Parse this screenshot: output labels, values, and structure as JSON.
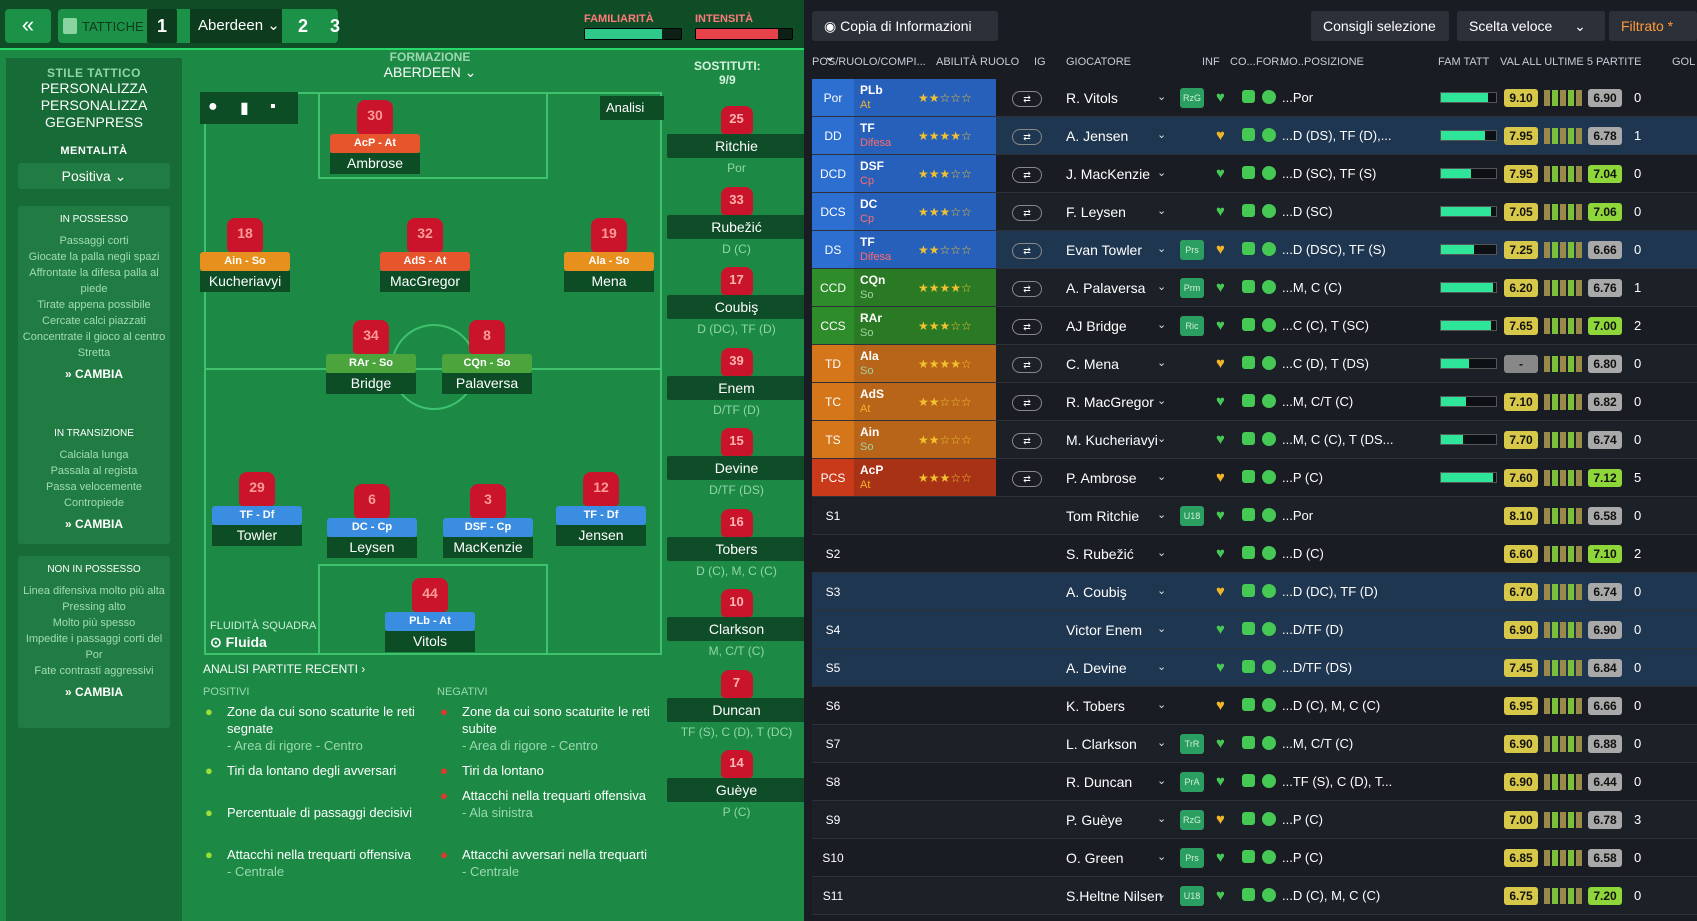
{
  "topbar": {
    "tactics": "TATTICHE",
    "tab1": "1",
    "team": "Aberdeen",
    "tab2": "2",
    "tab3": "3",
    "familiarity": "FAMILIARITÀ",
    "intensity": "INTENSITÀ"
  },
  "sidebar": {
    "style_label": "STILE TATTICO",
    "style_lines": [
      "PERSONALIZZA",
      "PERSONALIZZA",
      "GEGENPRESS"
    ],
    "mentality_label": "MENTALITÀ",
    "mentality": "Positiva",
    "possession": {
      "title": "IN POSSESSO",
      "items": [
        "Passaggi corti",
        "Giocate la palla negli spazi",
        "Affrontate la difesa palla al piede",
        "Tirate appena possibile",
        "Cercate calci piazzati",
        "Concentrate il gioco al centro",
        "Stretta"
      ],
      "cta": "CAMBIA"
    },
    "transition": {
      "title": "IN TRANSIZIONE",
      "items": [
        "Calciala lunga",
        "Passala al regista",
        "Passa velocemente",
        "Contropiede"
      ],
      "cta": "CAMBIA"
    },
    "defence": {
      "title": "NON IN POSSESSO",
      "items": [
        "Linea difensiva molto più alta",
        "Pressing alto",
        "Molto più spesso",
        "Impedite i passaggi corti del Por",
        "Fate contrasti aggressivi"
      ],
      "cta": "CAMBIA"
    }
  },
  "formation": {
    "label": "FORMAZIONE",
    "team": "ABERDEEN",
    "analysis": "Analisi",
    "fluidity_label": "FLUIDITÀ SQUADRA",
    "fluidity": "Fluida"
  },
  "pitch": [
    {
      "num": "30",
      "role": "AcP - At",
      "name": "Ambrose"
    },
    {
      "num": "18",
      "role": "Ain - So",
      "name": "Kucheriavyi"
    },
    {
      "num": "32",
      "role": "AdS - At",
      "name": "MacGregor"
    },
    {
      "num": "19",
      "role": "Ala - So",
      "name": "Mena"
    },
    {
      "num": "34",
      "role": "RAr - So",
      "name": "Bridge"
    },
    {
      "num": "8",
      "role": "CQn - So",
      "name": "Palaversa"
    },
    {
      "num": "29",
      "role": "TF - Df",
      "name": "Towler"
    },
    {
      "num": "6",
      "role": "DC - Cp",
      "name": "Leysen"
    },
    {
      "num": "3",
      "role": "DSF - Cp",
      "name": "MacKenzie"
    },
    {
      "num": "12",
      "role": "TF - Df",
      "name": "Jensen"
    },
    {
      "num": "44",
      "role": "PLb - At",
      "name": "Vitols"
    }
  ],
  "subs": {
    "label": "SOSTITUTI:",
    "count": "9/9",
    "list": [
      {
        "num": "25",
        "name": "Ritchie",
        "pos": "Por"
      },
      {
        "num": "33",
        "name": "Rubežić",
        "pos": "D (C)"
      },
      {
        "num": "17",
        "name": "Coubiş",
        "pos": "D (DC), TF (D)"
      },
      {
        "num": "39",
        "name": "Enem",
        "pos": "D/TF (D)"
      },
      {
        "num": "15",
        "name": "Devine",
        "pos": "D/TF (DS)"
      },
      {
        "num": "16",
        "name": "Tobers",
        "pos": "D (C), M, C (C)"
      },
      {
        "num": "10",
        "name": "Clarkson",
        "pos": "M, C/T (C)"
      },
      {
        "num": "7",
        "name": "Duncan",
        "pos": "TF (S), C (D), T (DC)"
      },
      {
        "num": "14",
        "name": "Guèye",
        "pos": "P (C)"
      }
    ]
  },
  "analysis": {
    "title": "ANALISI PARTITE RECENTI",
    "pos_label": "POSITIVI",
    "neg_label": "NEGATIVI",
    "positives": [
      {
        "t": "Zone da cui sono scaturite le reti segnate",
        "s": "- Area di rigore - Centro"
      },
      {
        "t": "Tiri da lontano degli avversari",
        "s": ""
      },
      {
        "t": "Percentuale di passaggi decisivi",
        "s": ""
      },
      {
        "t": "Attacchi nella trequarti offensiva",
        "s": "- Centrale"
      }
    ],
    "negatives": [
      {
        "t": "Zone da cui sono scaturite le reti subite",
        "s": "- Area di rigore - Centro"
      },
      {
        "t": "Tiri da lontano",
        "s": ""
      },
      {
        "t": "Attacchi nella trequarti offensiva",
        "s": "- Ala sinistra"
      },
      {
        "t": "Attacchi avversari nella trequarti",
        "s": "- Centrale"
      }
    ]
  },
  "right": {
    "copy": "Copia di Informazioni",
    "advice": "Consigli selezione",
    "quick": "Scelta veloce",
    "filter": "Filtrato *",
    "headers": [
      "POS/RUOLO/COMPI...",
      "ABILITÀ RUOLO",
      "IG",
      "GIOCATORE",
      "INF",
      "CO...",
      "FOR...",
      "MO...",
      "POSIZIONE",
      "FAM TATT",
      "VAL ALL ULTIME 5 PARTITE",
      "GOL"
    ]
  },
  "rows": [
    {
      "pos": "Por",
      "role": "PLb",
      "duty": "At",
      "stars": "★★☆☆☆",
      "name": "R. Vitols",
      "inf": "RzG",
      "posi": "...Por",
      "fam": 0.85,
      "val": "9.10",
      "avg": "6.90",
      "gol": "0"
    },
    {
      "pos": "DD",
      "role": "TF",
      "duty": "Difesa",
      "stars": "★★★★☆",
      "name": "A. Jensen",
      "inf": "",
      "posi": "...D (DS), TF (D),...",
      "fam": 0.8,
      "val": "7.95",
      "avg": "6.78",
      "gol": "1"
    },
    {
      "pos": "DCD",
      "role": "DSF",
      "duty": "Cp",
      "stars": "★★★☆☆",
      "name": "J. MacKenzie",
      "inf": "",
      "posi": "...D (SC), TF (S)",
      "fam": 0.55,
      "val": "7.95",
      "avg": "7.04",
      "gol": "0"
    },
    {
      "pos": "DCS",
      "role": "DC",
      "duty": "Cp",
      "stars": "★★★☆☆",
      "name": "F. Leysen",
      "inf": "",
      "posi": "...D (SC)",
      "fam": 0.9,
      "val": "7.05",
      "avg": "7.06",
      "gol": "0"
    },
    {
      "pos": "DS",
      "role": "TF",
      "duty": "Difesa",
      "stars": "★★☆☆☆",
      "name": "Evan Towler",
      "inf": "Prs",
      "posi": "...D (DSC), TF (S)",
      "fam": 0.6,
      "val": "7.25",
      "avg": "6.66",
      "gol": "0"
    },
    {
      "pos": "CCD",
      "role": "CQn",
      "duty": "So",
      "stars": "★★★★☆",
      "name": "A. Palaversa",
      "inf": "Prm",
      "posi": "...M, C (C)",
      "fam": 0.95,
      "val": "6.20",
      "avg": "6.76",
      "gol": "1"
    },
    {
      "pos": "CCS",
      "role": "RAr",
      "duty": "So",
      "stars": "★★★☆☆",
      "name": "AJ Bridge",
      "inf": "Ric",
      "posi": "...C (C), T (SC)",
      "fam": 0.9,
      "val": "7.65",
      "avg": "7.00",
      "gol": "2"
    },
    {
      "pos": "TD",
      "role": "Ala",
      "duty": "So",
      "stars": "★★★★☆",
      "name": "C. Mena",
      "inf": "",
      "posi": "...C (D), T (DS)",
      "fam": 0.5,
      "val": "-",
      "avg": "6.80",
      "gol": "0"
    },
    {
      "pos": "TC",
      "role": "AdS",
      "duty": "At",
      "stars": "★★☆☆☆",
      "name": "R. MacGregor",
      "inf": "",
      "posi": "...M, C/T (C)",
      "fam": 0.45,
      "val": "7.10",
      "avg": "6.82",
      "gol": "0"
    },
    {
      "pos": "TS",
      "role": "Ain",
      "duty": "So",
      "stars": "★★☆☆☆",
      "name": "M. Kucheriavyi",
      "inf": "",
      "posi": "...M, C (C), T (DS...",
      "fam": 0.4,
      "val": "7.70",
      "avg": "6.74",
      "gol": "0"
    },
    {
      "pos": "PCS",
      "role": "AcP",
      "duty": "At",
      "stars": "★★★☆☆",
      "name": "P. Ambrose",
      "inf": "",
      "posi": "...P (C)",
      "fam": 0.95,
      "val": "7.60",
      "avg": "7.12",
      "gol": "5"
    },
    {
      "pos": "S1",
      "role": "",
      "duty": "",
      "stars": "",
      "name": "Tom Ritchie",
      "inf": "U18",
      "posi": "...Por",
      "fam": 0,
      "val": "8.10",
      "avg": "6.58",
      "gol": "0"
    },
    {
      "pos": "S2",
      "role": "",
      "duty": "",
      "stars": "",
      "name": "S. Rubežić",
      "inf": "",
      "posi": "...D (C)",
      "fam": 0,
      "val": "6.60",
      "avg": "7.10",
      "gol": "2"
    },
    {
      "pos": "S3",
      "role": "",
      "duty": "",
      "stars": "",
      "name": "A. Coubiş",
      "inf": "",
      "posi": "...D (DC), TF (D)",
      "fam": 0,
      "val": "6.70",
      "avg": "6.74",
      "gol": "0"
    },
    {
      "pos": "S4",
      "role": "",
      "duty": "",
      "stars": "",
      "name": "Victor Enem",
      "inf": "",
      "posi": "...D/TF (D)",
      "fam": 0,
      "val": "6.90",
      "avg": "6.90",
      "gol": "0"
    },
    {
      "pos": "S5",
      "role": "",
      "duty": "",
      "stars": "",
      "name": "A. Devine",
      "inf": "",
      "posi": "...D/TF (DS)",
      "fam": 0,
      "val": "7.45",
      "avg": "6.84",
      "gol": "0"
    },
    {
      "pos": "S6",
      "role": "",
      "duty": "",
      "stars": "",
      "name": "K. Tobers",
      "inf": "",
      "posi": "...D (C), M, C (C)",
      "fam": 0,
      "val": "6.95",
      "avg": "6.66",
      "gol": "0"
    },
    {
      "pos": "S7",
      "role": "",
      "duty": "",
      "stars": "",
      "name": "L. Clarkson",
      "inf": "TrR",
      "posi": "...M, C/T (C)",
      "fam": 0,
      "val": "6.90",
      "avg": "6.88",
      "gol": "0"
    },
    {
      "pos": "S8",
      "role": "",
      "duty": "",
      "stars": "",
      "name": "R. Duncan",
      "inf": "PrA",
      "posi": "...TF (S), C (D), T...",
      "fam": 0,
      "val": "6.90",
      "avg": "6.44",
      "gol": "0"
    },
    {
      "pos": "S9",
      "role": "",
      "duty": "",
      "stars": "",
      "name": "P. Guèye",
      "inf": "RzG",
      "posi": "...P (C)",
      "fam": 0,
      "val": "7.00",
      "avg": "6.78",
      "gol": "3"
    },
    {
      "pos": "S10",
      "role": "",
      "duty": "",
      "stars": "",
      "name": "O. Green",
      "inf": "Prs",
      "posi": "...P (C)",
      "fam": 0,
      "val": "6.85",
      "avg": "6.58",
      "gol": "0"
    },
    {
      "pos": "S11",
      "role": "",
      "duty": "",
      "stars": "",
      "name": "S.Heltne Nilsen",
      "inf": "U18",
      "posi": "...D (C), M, C (C)",
      "fam": 0,
      "val": "6.75",
      "avg": "7.20",
      "gol": "0"
    }
  ]
}
